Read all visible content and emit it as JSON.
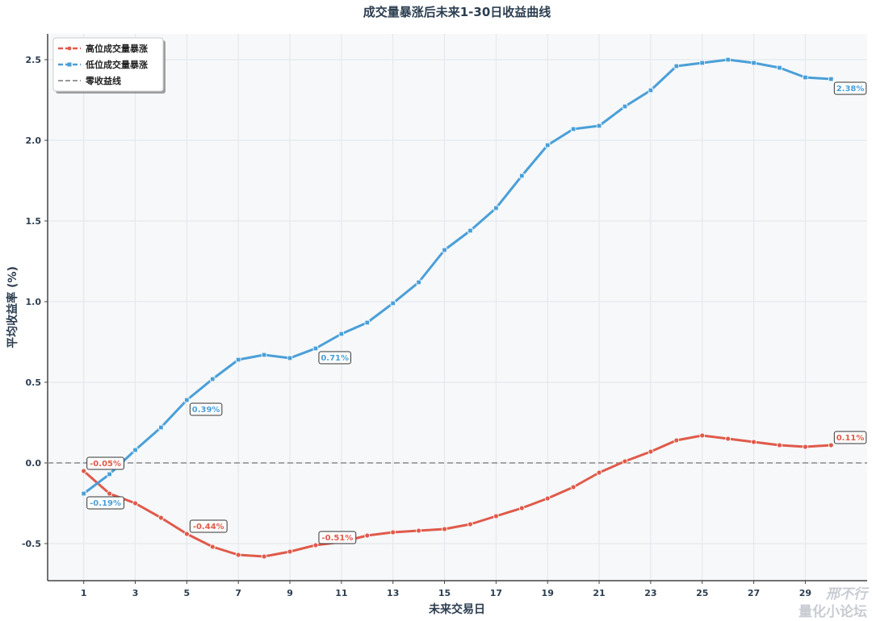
{
  "chart_data": {
    "type": "line",
    "title": "成交量暴涨后未来1-30日收益曲线",
    "xlabel": "未来交易日",
    "ylabel": "平均收益率 (%)",
    "xlim": [
      -0.4,
      31.4
    ],
    "ylim": [
      -0.73,
      2.66
    ],
    "xticks": [
      1,
      3,
      5,
      7,
      9,
      11,
      13,
      15,
      17,
      19,
      21,
      23,
      25,
      27,
      29
    ],
    "yticks": [
      -0.5,
      0.0,
      0.5,
      1.0,
      1.5,
      2.0,
      2.5
    ],
    "ytick_labels": [
      "-0.5",
      "0.0",
      "0.5",
      "1.0",
      "1.5",
      "2.0",
      "2.5"
    ],
    "grid": true,
    "legend_position": "top-left",
    "x": [
      1,
      2,
      3,
      4,
      5,
      6,
      7,
      8,
      9,
      10,
      11,
      12,
      13,
      14,
      15,
      16,
      17,
      18,
      19,
      20,
      21,
      22,
      23,
      24,
      25,
      26,
      27,
      28,
      29,
      30
    ],
    "series": [
      {
        "name": "高位成交量暴涨",
        "color": "#e05a4a",
        "marker": "circle",
        "values": [
          -0.05,
          -0.19,
          -0.25,
          -0.34,
          -0.44,
          -0.52,
          -0.57,
          -0.58,
          -0.55,
          -0.51,
          -0.49,
          -0.45,
          -0.43,
          -0.42,
          -0.41,
          -0.38,
          -0.33,
          -0.28,
          -0.22,
          -0.15,
          -0.06,
          0.01,
          0.07,
          0.14,
          0.17,
          0.15,
          0.13,
          0.11,
          0.1,
          0.11
        ]
      },
      {
        "name": "低位成交量暴涨",
        "color": "#4a9fd8",
        "marker": "square",
        "values": [
          -0.19,
          -0.07,
          0.08,
          0.22,
          0.39,
          0.52,
          0.64,
          0.67,
          0.65,
          0.71,
          0.8,
          0.87,
          0.99,
          1.12,
          1.32,
          1.44,
          1.58,
          1.78,
          1.97,
          2.07,
          2.09,
          2.21,
          2.31,
          2.46,
          2.48,
          2.5,
          2.48,
          2.45,
          2.39,
          2.38
        ]
      }
    ],
    "reference_line": {
      "name": "零收益线",
      "y": 0,
      "color": "#999999"
    },
    "annotations": [
      {
        "series": 0,
        "x": 1,
        "text": "-0.05%"
      },
      {
        "series": 0,
        "x": 5,
        "text": "-0.44%"
      },
      {
        "series": 0,
        "x": 10,
        "text": "-0.51%"
      },
      {
        "series": 0,
        "x": 30,
        "text": "0.11%"
      },
      {
        "series": 1,
        "x": 1,
        "text": "-0.19%"
      },
      {
        "series": 1,
        "x": 5,
        "text": "0.39%"
      },
      {
        "series": 1,
        "x": 10,
        "text": "0.71%"
      },
      {
        "series": 1,
        "x": 30,
        "text": "2.38%"
      }
    ]
  },
  "watermark": {
    "line1": "邢不行",
    "line2": "量化小论坛"
  }
}
